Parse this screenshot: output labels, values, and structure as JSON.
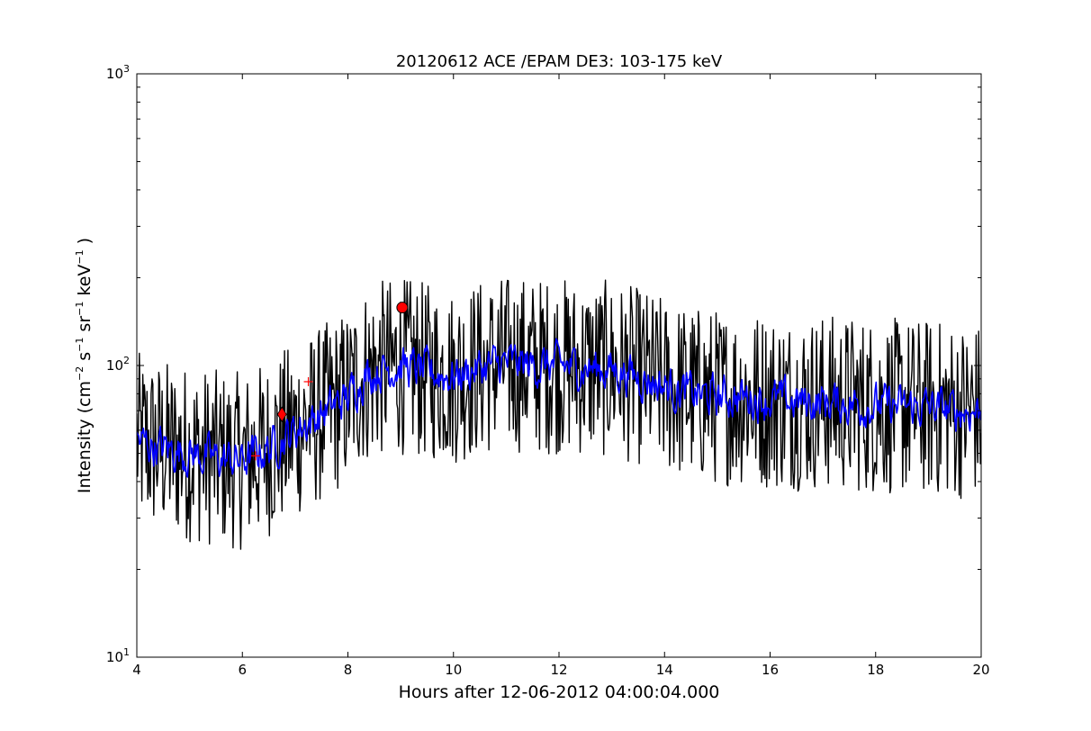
{
  "chart_data": {
    "type": "line",
    "title": "20120612 ACE /EPAM DE3: 103-175 keV",
    "xlabel": "Hours after 12-06-2012 04:00:04.000",
    "ylabel": {
      "prefix": "Intensity (cm",
      "sup1": "−2",
      "mid1": " s",
      "sup2": "−1",
      "mid2": " sr",
      "sup3": "−1",
      "mid3": " keV",
      "sup4": "−1",
      "suffix": " )"
    },
    "xlim": [
      4,
      20
    ],
    "ylim": [
      10,
      1000
    ],
    "yscale": "log",
    "grid": false,
    "xticks": [
      "4",
      "6",
      "8",
      "10",
      "12",
      "14",
      "16",
      "18",
      "20"
    ],
    "yticks": [
      {
        "base": "10",
        "exp": "1"
      },
      {
        "base": "10",
        "exp": "2"
      },
      {
        "base": "10",
        "exp": "3"
      }
    ],
    "series": [
      {
        "color": "#000000",
        "style": "raw-noisy",
        "x": [
          4.0,
          4.5,
          5.0,
          5.5,
          6.0,
          6.5,
          7.0,
          7.5,
          8.0,
          8.3,
          8.7,
          9.0,
          9.5,
          10.0,
          10.5,
          11.0,
          11.5,
          12.0,
          12.5,
          13.0,
          13.5,
          14.0,
          14.5,
          15.0,
          15.5,
          16.0,
          16.5,
          17.0,
          17.5,
          18.0,
          18.5,
          19.0,
          19.5,
          20.0
        ],
        "y": [
          55,
          52,
          50,
          48,
          47,
          52,
          60,
          68,
          78,
          92,
          98,
          100,
          95,
          92,
          98,
          102,
          100,
          100,
          98,
          97,
          92,
          85,
          80,
          78,
          78,
          76,
          75,
          75,
          74,
          73,
          72,
          72,
          70,
          70
        ]
      },
      {
        "color": "#0000ff",
        "style": "smoothed",
        "x": [
          4.0,
          4.5,
          5.0,
          5.5,
          6.0,
          6.5,
          7.0,
          7.5,
          8.0,
          8.3,
          8.7,
          9.0,
          9.5,
          10.0,
          10.5,
          11.0,
          11.5,
          12.0,
          12.5,
          13.0,
          13.5,
          14.0,
          14.5,
          15.0,
          15.5,
          16.0,
          16.5,
          17.0,
          17.5,
          18.0,
          18.5,
          19.0,
          19.5,
          20.0
        ],
        "y": [
          55,
          52,
          50,
          48,
          47,
          52,
          60,
          68,
          78,
          92,
          98,
          100,
          95,
          92,
          98,
          102,
          100,
          100,
          98,
          97,
          92,
          85,
          80,
          78,
          78,
          76,
          75,
          75,
          74,
          73,
          72,
          72,
          70,
          70
        ]
      }
    ],
    "markers": [
      {
        "shape": "circle",
        "color": "#ff0000",
        "x": 9.03,
        "y": 158
      },
      {
        "shape": "diamond",
        "color": "#ff0000",
        "x": 6.75,
        "y": 68
      },
      {
        "shape": "plus",
        "color": "#ff0000",
        "x": 7.25,
        "y": 88
      },
      {
        "shape": "plus",
        "color": "#ff0000",
        "x": 6.25,
        "y": 49
      }
    ]
  }
}
